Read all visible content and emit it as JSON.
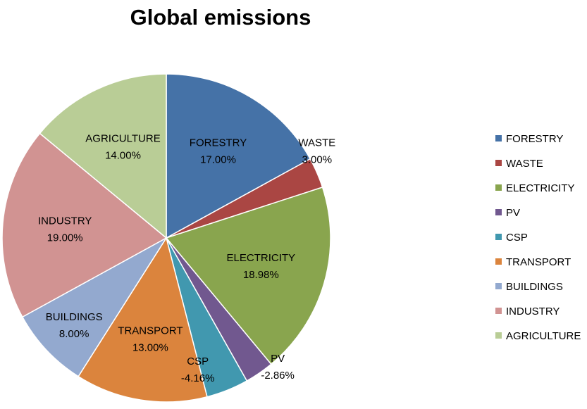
{
  "chart_data": {
    "type": "pie",
    "title": "Global emissions",
    "legend_position": "right",
    "slices": [
      {
        "label": "FORESTRY",
        "value": 17.0,
        "value_label": "17.00%",
        "color": "#4572A7"
      },
      {
        "label": "WASTE",
        "value": 3.0,
        "value_label": "3.00%",
        "color": "#AA4643"
      },
      {
        "label": "ELECTRICITY",
        "value": 18.98,
        "value_label": "18.98%",
        "color": "#89A54E"
      },
      {
        "label": "PV",
        "value": -2.86,
        "value_label": "-2.86%",
        "color": "#71588F"
      },
      {
        "label": "CSP",
        "value": -4.16,
        "value_label": "-4.16%",
        "color": "#4198AF"
      },
      {
        "label": "TRANSPORT",
        "value": 13.0,
        "value_label": "13.00%",
        "color": "#DB843D"
      },
      {
        "label": "BUILDINGS",
        "value": 8.0,
        "value_label": "8.00%",
        "color": "#93A9CF"
      },
      {
        "label": "INDUSTRY",
        "value": 19.0,
        "value_label": "19.00%",
        "color": "#D19392"
      },
      {
        "label": "AGRICULTURE",
        "value": 14.0,
        "value_label": "14.00%",
        "color": "#B9CD96"
      }
    ],
    "legend": [
      "FORESTRY",
      "WASTE",
      "ELECTRICITY",
      "PV",
      "CSP",
      "TRANSPORT",
      "BUILDINGS",
      "INDUSTRY",
      "AGRICULTURE"
    ]
  }
}
